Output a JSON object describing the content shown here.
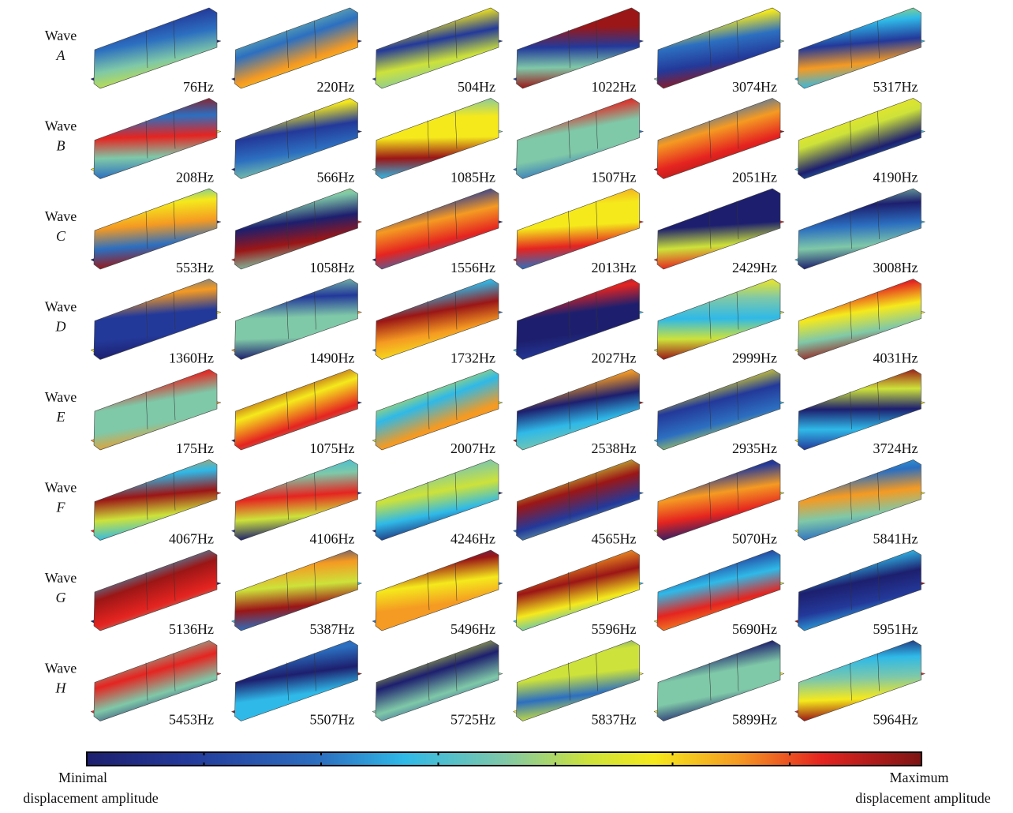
{
  "rows": [
    {
      "label": "Wave",
      "letter": "A",
      "modes": [
        "76Hz",
        "220Hz",
        "504Hz",
        "1022Hz",
        "3074Hz",
        "5317Hz"
      ]
    },
    {
      "label": "Wave",
      "letter": "B",
      "modes": [
        "208Hz",
        "566Hz",
        "1085Hz",
        "1507Hz",
        "2051Hz",
        "4190Hz"
      ]
    },
    {
      "label": "Wave",
      "letter": "C",
      "modes": [
        "553Hz",
        "1058Hz",
        "1556Hz",
        "2013Hz",
        "2429Hz",
        "3008Hz"
      ]
    },
    {
      "label": "Wave",
      "letter": "D",
      "modes": [
        "1360Hz",
        "1490Hz",
        "1732Hz",
        "2027Hz",
        "2999Hz",
        "4031Hz"
      ]
    },
    {
      "label": "Wave",
      "letter": "E",
      "modes": [
        "175Hz",
        "1075Hz",
        "2007Hz",
        "2538Hz",
        "2935Hz",
        "3724Hz"
      ]
    },
    {
      "label": "Wave",
      "letter": "F",
      "modes": [
        "4067Hz",
        "4106Hz",
        "4246Hz",
        "4565Hz",
        "5070Hz",
        "5841Hz"
      ]
    },
    {
      "label": "Wave",
      "letter": "G",
      "modes": [
        "5136Hz",
        "5387Hz",
        "5496Hz",
        "5596Hz",
        "5690Hz",
        "5951Hz"
      ]
    },
    {
      "label": "Wave",
      "letter": "H",
      "modes": [
        "5453Hz",
        "5507Hz",
        "5725Hz",
        "5837Hz",
        "5899Hz",
        "5964Hz"
      ]
    }
  ],
  "colorbar": {
    "min_label": [
      "Minimal",
      "displacement amplitude"
    ],
    "max_label": [
      "Maximum",
      "displacement amplitude"
    ]
  }
}
